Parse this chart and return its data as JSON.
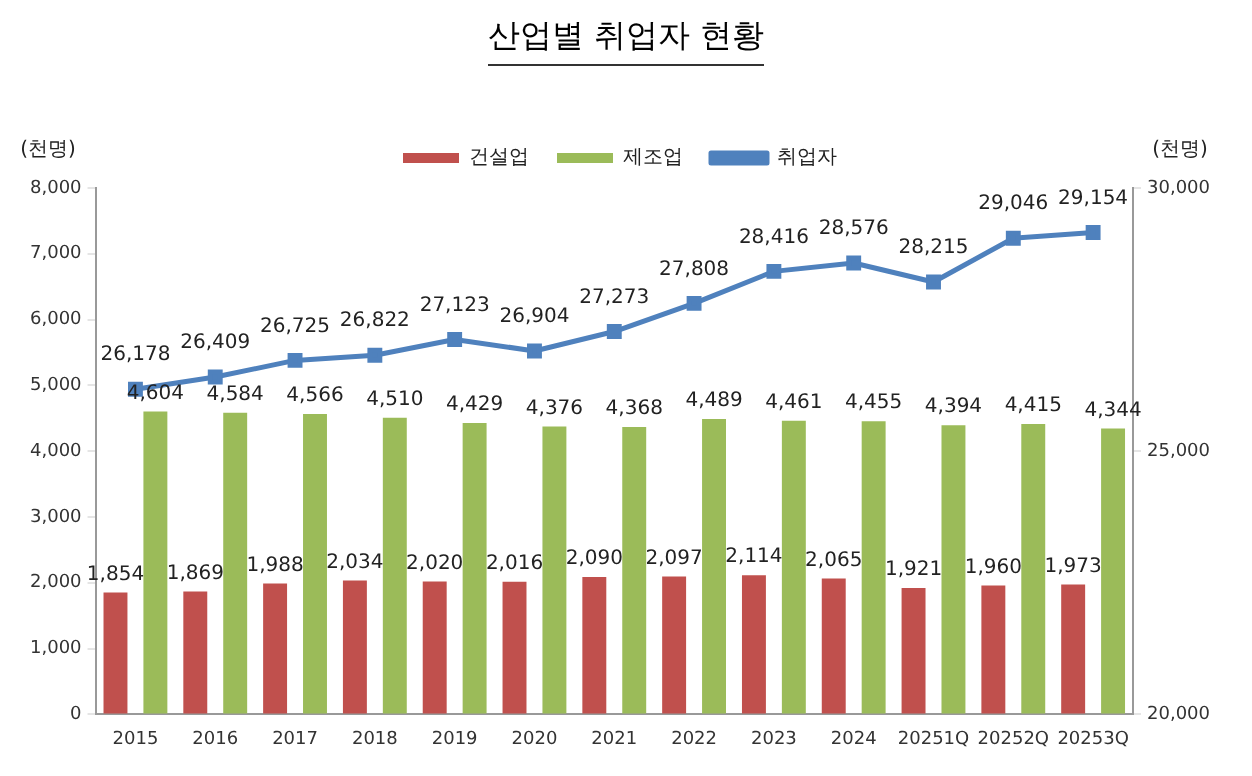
{
  "chart_data": {
    "type": "bar",
    "title": "산업별 취업자 현황",
    "ylabel": "(천명)",
    "y2label": "(천명)",
    "categories": [
      "2015",
      "2016",
      "2017",
      "2018",
      "2019",
      "2020",
      "2021",
      "2022",
      "2023",
      "2024",
      "20251Q",
      "20252Q",
      "20253Q"
    ],
    "series": [
      {
        "name": "건설업",
        "color": "#c0504d",
        "values": [
          1854,
          1869,
          1988,
          2034,
          2020,
          2016,
          2090,
          2097,
          2114,
          2065,
          1921,
          1960,
          1973
        ],
        "value_labels": [
          "1,854",
          "1,869",
          "1,988",
          "2,034",
          "2,020",
          "2,016",
          "2,090",
          "2,097",
          "2,114",
          "2,065",
          "1,921",
          "1,960",
          "1,973"
        ]
      },
      {
        "name": "제조업",
        "color": "#9bbb59",
        "values": [
          4604,
          4584,
          4566,
          4510,
          4429,
          4376,
          4368,
          4489,
          4461,
          4455,
          4394,
          4415,
          4344
        ],
        "value_labels": [
          "4,604",
          "4,584",
          "4,566",
          "4,510",
          "4,429",
          "4,376",
          "4,368",
          "4,489",
          "4,461",
          "4,455",
          "4,394",
          "4,415",
          "4,344"
        ]
      },
      {
        "name": "취업자",
        "color": "#4f81bd",
        "type": "line",
        "axis": "y2",
        "marker": "square",
        "values": [
          26178,
          26409,
          26725,
          26822,
          27123,
          26904,
          27273,
          27808,
          28416,
          28576,
          28215,
          29046,
          29154
        ],
        "value_labels": [
          "26,178",
          "26,409",
          "26,725",
          "26,822",
          "27,123",
          "26,904",
          "27,273",
          "27,808",
          "28,416",
          "28,576",
          "28,215",
          "29,046",
          "29,154"
        ]
      }
    ],
    "ylim": [
      0,
      8000
    ],
    "yticks": [
      {
        "value": 0,
        "label": "0"
      },
      {
        "value": 1000,
        "label": "1,000"
      },
      {
        "value": 2000,
        "label": "2,000"
      },
      {
        "value": 3000,
        "label": "3,000"
      },
      {
        "value": 4000,
        "label": "4,000"
      },
      {
        "value": 5000,
        "label": "5,000"
      },
      {
        "value": 6000,
        "label": "6,000"
      },
      {
        "value": 7000,
        "label": "7,000"
      },
      {
        "value": 8000,
        "label": "8,000"
      }
    ],
    "y2lim": [
      20000,
      30000
    ],
    "y2ticks": [
      {
        "value": 20000,
        "label": "20,000"
      },
      {
        "value": 25000,
        "label": "25,000"
      },
      {
        "value": 30000,
        "label": "30,000"
      }
    ],
    "legend": "top",
    "grid": false
  }
}
